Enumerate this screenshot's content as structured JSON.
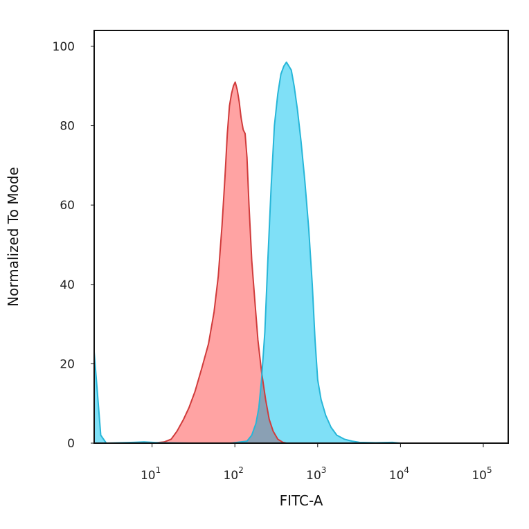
{
  "chart_data": {
    "type": "area",
    "xlabel": "FITC-A",
    "ylabel": "Normalized To Mode",
    "xscale": "log",
    "xlim": [
      2,
      200000
    ],
    "ylim": [
      0,
      104
    ],
    "x_ticks": [
      {
        "value": 10,
        "base": "10",
        "exp": "1"
      },
      {
        "value": 100,
        "base": "10",
        "exp": "2"
      },
      {
        "value": 1000,
        "base": "10",
        "exp": "3"
      },
      {
        "value": 10000,
        "base": "10",
        "exp": "4"
      },
      {
        "value": 100000,
        "base": "10",
        "exp": "5"
      }
    ],
    "y_ticks": [
      {
        "value": 0,
        "label": "0"
      },
      {
        "value": 20,
        "label": "20"
      },
      {
        "value": 40,
        "label": "40"
      },
      {
        "value": 60,
        "label": "60"
      },
      {
        "value": 80,
        "label": "80"
      },
      {
        "value": 100,
        "label": "100"
      }
    ],
    "grid": false,
    "legend": "none",
    "overlap_color": "#8aa0b4",
    "series": [
      {
        "color_line": "#d03b3b",
        "color_fill": "#ff8c8c",
        "points": [
          [
            2,
            0
          ],
          [
            10,
            0
          ],
          [
            14,
            0.3
          ],
          [
            17,
            1
          ],
          [
            20,
            3
          ],
          [
            24,
            6
          ],
          [
            28,
            9
          ],
          [
            33,
            13
          ],
          [
            40,
            19
          ],
          [
            48,
            25
          ],
          [
            56,
            33
          ],
          [
            63,
            42
          ],
          [
            70,
            55
          ],
          [
            76,
            67
          ],
          [
            81,
            78
          ],
          [
            86,
            85
          ],
          [
            91,
            88
          ],
          [
            96,
            90
          ],
          [
            101,
            91
          ],
          [
            107,
            89
          ],
          [
            113,
            86
          ],
          [
            119,
            82
          ],
          [
            126,
            79
          ],
          [
            133,
            78
          ],
          [
            140,
            72
          ],
          [
            148,
            60
          ],
          [
            160,
            46
          ],
          [
            174,
            36
          ],
          [
            190,
            26
          ],
          [
            210,
            18
          ],
          [
            235,
            11
          ],
          [
            260,
            6
          ],
          [
            290,
            3
          ],
          [
            330,
            1
          ],
          [
            380,
            0.2
          ],
          [
            420,
            0
          ],
          [
            200000,
            0
          ]
        ]
      },
      {
        "color_line": "#27b6d8",
        "color_fill": "#5fd8f5",
        "points": [
          [
            2,
            23
          ],
          [
            2.2,
            12
          ],
          [
            2.4,
            2
          ],
          [
            2.8,
            0
          ],
          [
            6,
            0.2
          ],
          [
            8,
            0.3
          ],
          [
            12,
            0.1
          ],
          [
            30,
            0
          ],
          [
            90,
            0
          ],
          [
            140,
            0.5
          ],
          [
            160,
            2
          ],
          [
            180,
            5
          ],
          [
            195,
            9
          ],
          [
            210,
            16
          ],
          [
            230,
            28
          ],
          [
            250,
            46
          ],
          [
            275,
            65
          ],
          [
            300,
            80
          ],
          [
            330,
            88
          ],
          [
            360,
            93
          ],
          [
            390,
            95
          ],
          [
            420,
            96
          ],
          [
            450,
            95
          ],
          [
            480,
            94
          ],
          [
            520,
            90
          ],
          [
            570,
            84
          ],
          [
            630,
            76
          ],
          [
            700,
            66
          ],
          [
            780,
            54
          ],
          [
            860,
            40
          ],
          [
            930,
            26
          ],
          [
            1000,
            16
          ],
          [
            1100,
            11
          ],
          [
            1250,
            7
          ],
          [
            1450,
            4
          ],
          [
            1700,
            2
          ],
          [
            2100,
            1
          ],
          [
            2600,
            0.5
          ],
          [
            3200,
            0.2
          ],
          [
            5000,
            0.1
          ],
          [
            8000,
            0.2
          ],
          [
            10000,
            0
          ],
          [
            200000,
            0
          ]
        ]
      }
    ]
  }
}
